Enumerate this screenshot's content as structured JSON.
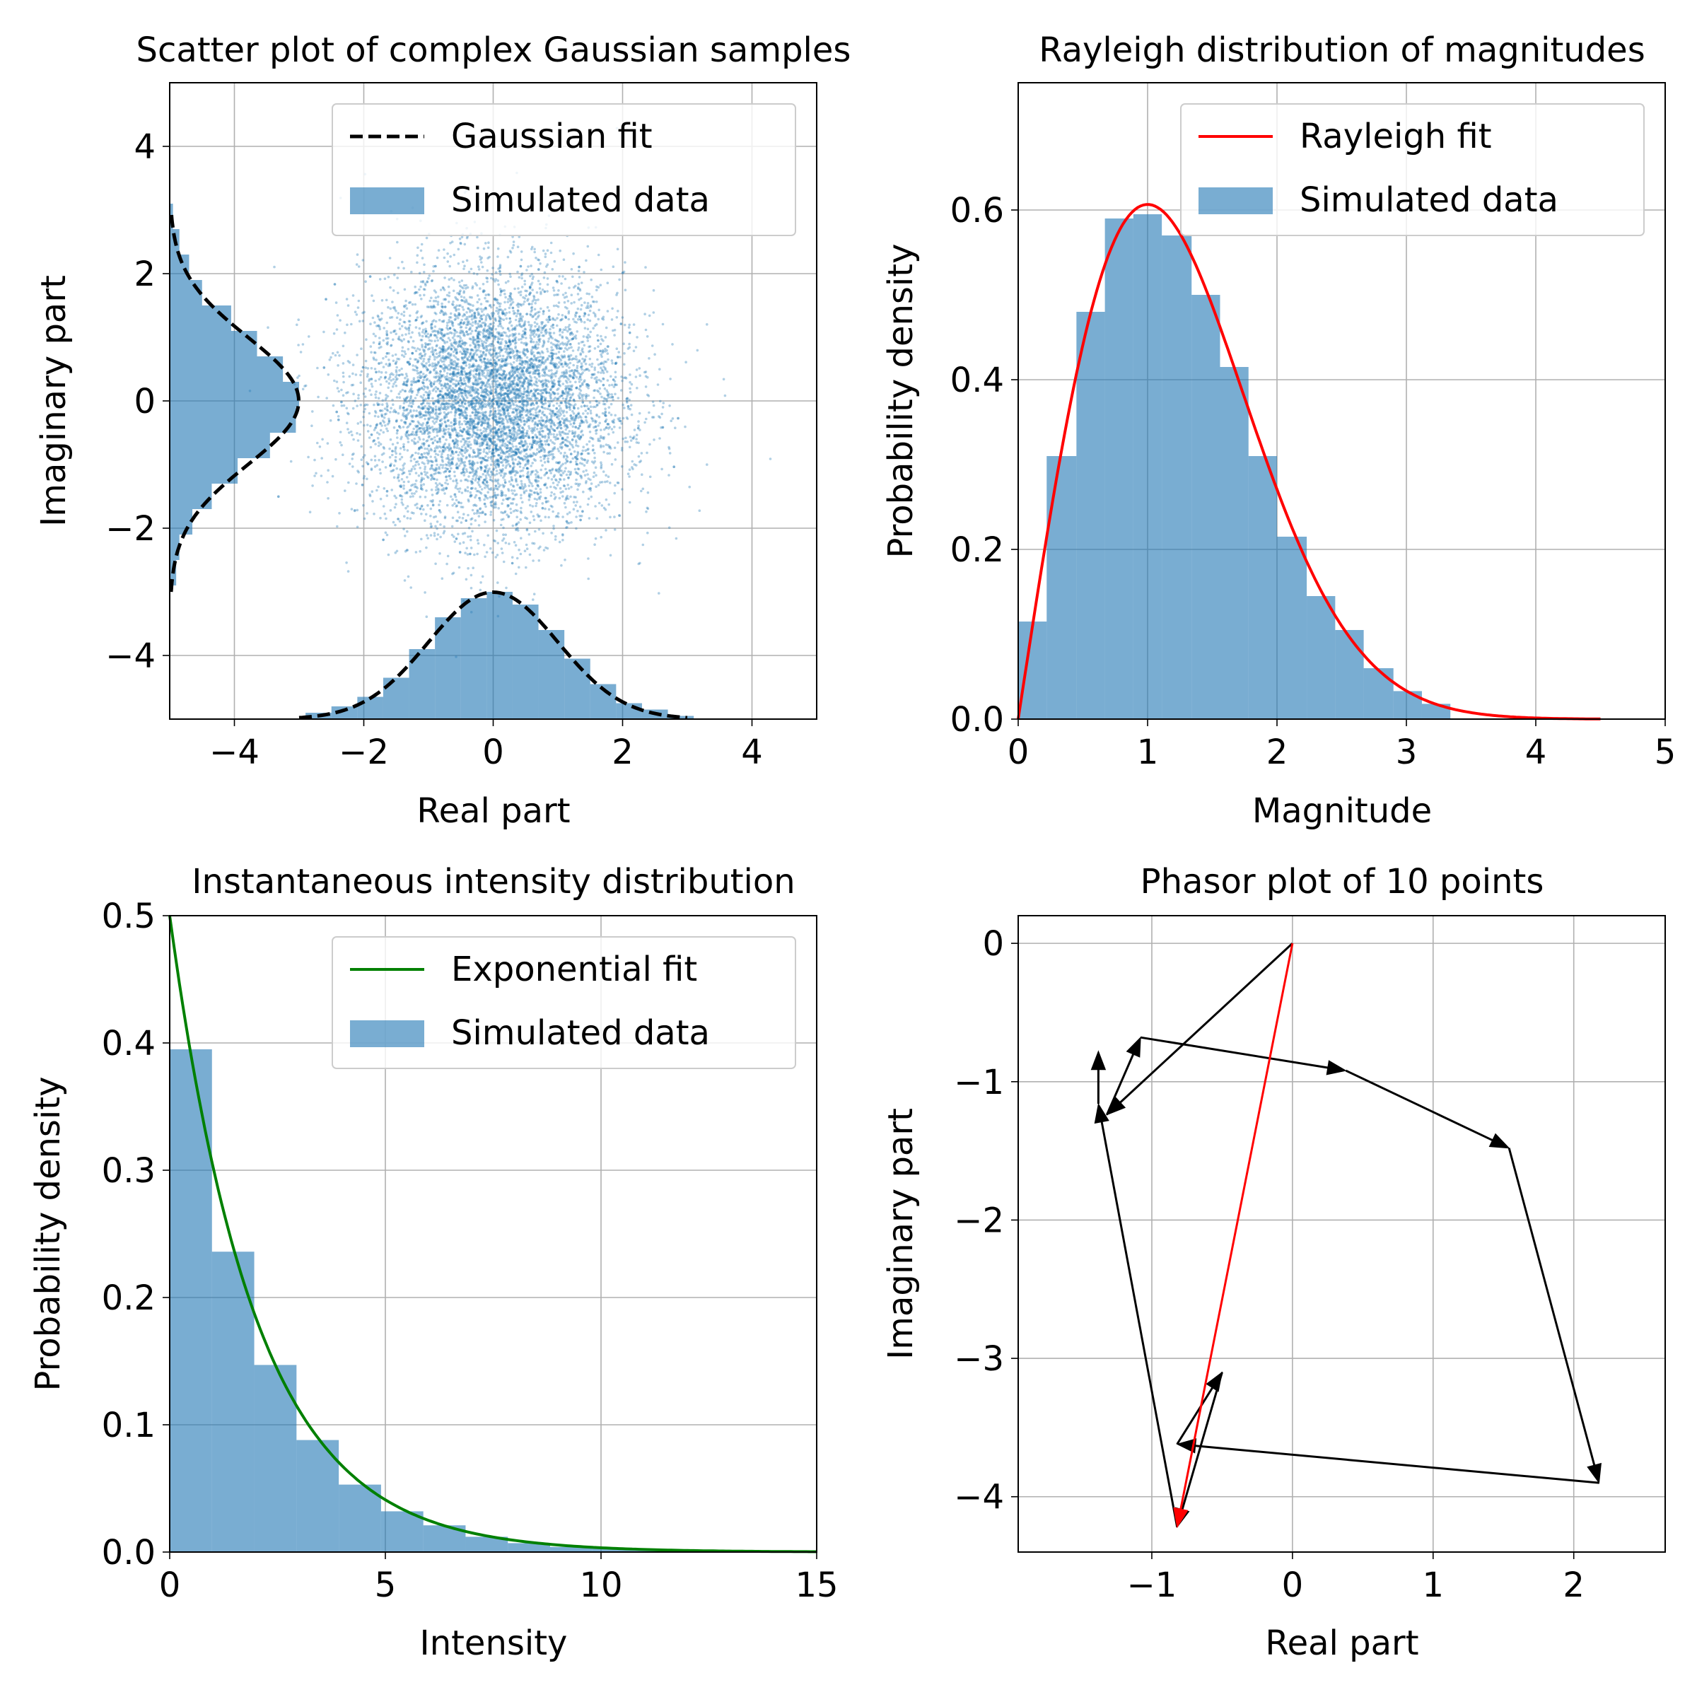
{
  "chart_data": [
    {
      "type": "scatter",
      "title": "Scatter plot of complex Gaussian samples",
      "xlabel": "Real part",
      "ylabel": "Imaginary part",
      "xlim": [
        -5,
        5
      ],
      "ylim": [
        -5,
        5
      ],
      "xticks": [
        -4,
        -2,
        0,
        2,
        4
      ],
      "yticks": [
        -4,
        -2,
        0,
        2,
        4
      ],
      "grid": true,
      "legend": {
        "placement": "upper right",
        "entries": [
          "Gaussian fit",
          "Simulated data"
        ]
      },
      "scatter": {
        "distribution": "complex Gaussian",
        "mean": [
          0,
          0
        ],
        "std": 1,
        "count": 10000,
        "color": "#1f77b4"
      },
      "marginal_hist": {
        "bin_centers": [
          -2.7,
          -2.3,
          -1.9,
          -1.5,
          -1.1,
          -0.7,
          -0.3,
          0.1,
          0.5,
          0.9,
          1.3,
          1.7,
          2.1,
          2.5,
          2.9
        ],
        "x_density": [
          0.02,
          0.04,
          0.07,
          0.13,
          0.22,
          0.32,
          0.38,
          0.4,
          0.36,
          0.28,
          0.19,
          0.11,
          0.05,
          0.03,
          0.01
        ],
        "y_density": [
          0.02,
          0.03,
          0.07,
          0.13,
          0.21,
          0.31,
          0.39,
          0.4,
          0.35,
          0.27,
          0.19,
          0.1,
          0.06,
          0.03,
          0.01
        ]
      },
      "fit": {
        "label": "Gaussian fit",
        "mean": 0,
        "std": 1,
        "peak_density": 0.4,
        "color": "#000000",
        "style": "dashed"
      }
    },
    {
      "type": "bar",
      "title": "Rayleigh distribution of magnitudes",
      "xlabel": "Magnitude",
      "ylabel": "Probability density",
      "xlim": [
        0,
        5
      ],
      "ylim": [
        0,
        0.75
      ],
      "xticks": [
        0,
        1,
        2,
        3,
        4,
        5
      ],
      "yticks": [
        0.0,
        0.2,
        0.4,
        0.6
      ],
      "grid": true,
      "legend": {
        "placement": "upper right",
        "entries": [
          "Rayleigh fit",
          "Simulated data"
        ]
      },
      "bin_edges": [
        0.0,
        0.22,
        0.45,
        0.67,
        0.89,
        1.11,
        1.34,
        1.56,
        1.78,
        2.0,
        2.23,
        2.45,
        2.67,
        2.9,
        3.12,
        3.34
      ],
      "values": [
        0.115,
        0.31,
        0.48,
        0.59,
        0.595,
        0.57,
        0.5,
        0.415,
        0.31,
        0.215,
        0.145,
        0.105,
        0.06,
        0.033,
        0.018
      ],
      "fit": {
        "label": "Rayleigh fit",
        "sigma": 1.0,
        "x_range": [
          0,
          4.5
        ],
        "color": "#ff0000"
      }
    },
    {
      "type": "bar",
      "title": "Instantaneous intensity distribution",
      "xlabel": "Intensity",
      "ylabel": "Probability density",
      "xlim": [
        0,
        15
      ],
      "ylim": [
        0,
        0.5
      ],
      "xticks": [
        0,
        5,
        10,
        15
      ],
      "yticks": [
        0.0,
        0.1,
        0.2,
        0.3,
        0.4,
        0.5
      ],
      "grid": true,
      "legend": {
        "placement": "upper right",
        "entries": [
          "Exponential fit",
          "Simulated data"
        ]
      },
      "bin_edges": [
        0,
        0.98,
        1.96,
        2.94,
        3.92,
        4.9,
        5.88,
        6.86,
        7.84,
        8.82,
        9.8,
        10.78,
        11.76,
        12.74,
        13.72,
        14.7
      ],
      "values": [
        0.395,
        0.236,
        0.147,
        0.088,
        0.053,
        0.032,
        0.021,
        0.012,
        0.007,
        0.004,
        0.003,
        0.002,
        0.001,
        0.001,
        0.0005
      ],
      "fit": {
        "label": "Exponential fit",
        "mean": 2,
        "x_range": [
          0,
          15
        ],
        "color": "#008000"
      }
    },
    {
      "type": "line",
      "title": "Phasor plot of 10 points",
      "xlabel": "Real part",
      "ylabel": "Imaginary part",
      "xlim": [
        -1.95,
        2.65
      ],
      "ylim": [
        -4.4,
        0.2
      ],
      "xticks": [
        -1,
        0,
        1,
        2
      ],
      "yticks": [
        0,
        -1,
        -2,
        -3,
        -4
      ],
      "grid": true,
      "points": [
        [
          0,
          0
        ],
        [
          -1.32,
          -1.24
        ],
        [
          -1.08,
          -0.68
        ],
        [
          0.38,
          -0.92
        ],
        [
          1.54,
          -1.48
        ],
        [
          2.18,
          -3.9
        ],
        [
          -0.82,
          -3.62
        ],
        [
          -0.5,
          -3.1
        ],
        [
          -0.82,
          -4.22
        ],
        [
          -1.38,
          -1.16
        ],
        [
          -1.38,
          -0.78
        ]
      ],
      "phasor_color": "#000000",
      "resultant": {
        "from": [
          0,
          0
        ],
        "to": [
          -0.82,
          -4.22
        ],
        "color": "#ff0000"
      }
    }
  ]
}
